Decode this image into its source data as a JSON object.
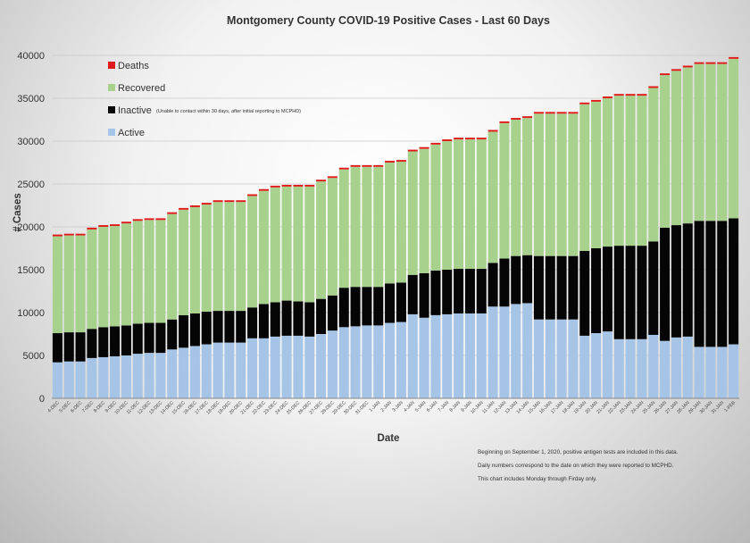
{
  "chart_data": {
    "type": "bar",
    "stacked": true,
    "title": "Montgomery County COVID-19 Positive Cases  - Last 60 Days",
    "xlabel": "Date",
    "ylabel": "# Cases",
    "ylim": [
      0,
      40000
    ],
    "yticks": [
      0,
      5000,
      10000,
      15000,
      20000,
      25000,
      30000,
      35000,
      40000
    ],
    "legend_position": "top-left",
    "legend_note": "(Unable to contact within 30 days, after initial reporting to MCPHD)",
    "categories": [
      "4-DEC",
      "5-DEC",
      "6-DEC",
      "7-DEC",
      "8-DEC",
      "9-DEC",
      "10-DEC",
      "11-DEC",
      "12-DEC",
      "13-DEC",
      "14-DEC",
      "15-DEC",
      "16-DEC",
      "17-DEC",
      "18-DEC",
      "19-DEC",
      "20-DEC",
      "21-DEC",
      "22-DEC",
      "23-DEC",
      "24-DEC",
      "25-DEC",
      "26-DEC",
      "27-DEC",
      "28-DEC",
      "29-DEC",
      "30-DEC",
      "31-DEC",
      "1-JAN",
      "2-JAN",
      "3-JAN",
      "4-JAN",
      "5-JAN",
      "6-JAN",
      "7-JAN",
      "8-JAN",
      "9-JAN",
      "10-JAN",
      "11-JAN",
      "12-JAN",
      "13-JAN",
      "14-JAN",
      "15-JAN",
      "16-JAN",
      "17-JAN",
      "18-JAN",
      "19-JAN",
      "20-JAN",
      "21-JAN",
      "22-JAN",
      "23-JAN",
      "24-JAN",
      "25-JAN",
      "26-JAN",
      "27-JAN",
      "28-JAN",
      "29-JAN",
      "30-JAN",
      "31-JAN",
      "1-FEB"
    ],
    "series": [
      {
        "name": "Active",
        "color": "#a6c4e6",
        "values": [
          4200,
          4300,
          4300,
          4700,
          4800,
          4900,
          5000,
          5200,
          5300,
          5300,
          5700,
          5900,
          6100,
          6300,
          6500,
          6500,
          6500,
          7000,
          7000,
          7200,
          7300,
          7300,
          7200,
          7500,
          7900,
          8300,
          8400,
          8500,
          8500,
          8800,
          8900,
          9800,
          9400,
          9700,
          9800,
          9900,
          9900,
          9900,
          10700,
          10700,
          11000,
          11100,
          9200,
          9200,
          9200,
          9200,
          7300,
          7600,
          7800,
          6900,
          6900,
          6900,
          7400,
          6700,
          7100,
          7200,
          6000,
          6000,
          6000,
          6300
        ]
      },
      {
        "name": "Inactive",
        "color": "#050505",
        "values": [
          3400,
          3400,
          3400,
          3400,
          3500,
          3500,
          3500,
          3500,
          3500,
          3500,
          3500,
          3800,
          3800,
          3800,
          3700,
          3700,
          3700,
          3600,
          4000,
          4000,
          4100,
          4000,
          4000,
          4100,
          4100,
          4600,
          4600,
          4500,
          4500,
          4600,
          4600,
          4600,
          5200,
          5200,
          5200,
          5200,
          5200,
          5200,
          5100,
          5600,
          5600,
          5600,
          7400,
          7400,
          7400,
          7400,
          9900,
          9900,
          9900,
          10900,
          10900,
          10900,
          10900,
          13200,
          13100,
          13200,
          14700,
          14700,
          14700,
          14700
        ]
      },
      {
        "name": "Recovered",
        "color": "#a8d18d",
        "values": [
          11300,
          11300,
          11300,
          11600,
          11700,
          11700,
          11900,
          12000,
          12000,
          12000,
          12300,
          12300,
          12400,
          12500,
          12700,
          12700,
          12700,
          13000,
          13200,
          13400,
          13300,
          13400,
          13500,
          13700,
          13700,
          13800,
          14000,
          14000,
          14000,
          14100,
          14100,
          14400,
          14500,
          14700,
          15000,
          15100,
          15100,
          15100,
          15300,
          15800,
          15900,
          16000,
          16600,
          16600,
          16600,
          16600,
          17100,
          17100,
          17300,
          17500,
          17500,
          17500,
          17900,
          17800,
          18000,
          18200,
          18300,
          18300,
          18300,
          18600
        ]
      },
      {
        "name": "Deaths",
        "color": "#e01a1a",
        "values": [
          200,
          200,
          200,
          200,
          200,
          200,
          200,
          200,
          200,
          200,
          200,
          200,
          200,
          200,
          200,
          200,
          200,
          200,
          200,
          200,
          200,
          200,
          200,
          200,
          200,
          200,
          200,
          200,
          200,
          200,
          200,
          200,
          200,
          200,
          200,
          200,
          200,
          200,
          200,
          200,
          200,
          200,
          200,
          200,
          200,
          200,
          200,
          200,
          200,
          200,
          200,
          200,
          200,
          200,
          200,
          200,
          200,
          200,
          200,
          200
        ]
      }
    ]
  },
  "legend_order": [
    "Deaths",
    "Recovered",
    "Inactive",
    "Active"
  ],
  "notes": [
    "Beginning on September 1, 2020, positive antigen tests are included in this data.",
    "Daily numbers correspond to the date on which they were reported to MCPHD.",
    "This chart includes Monday through Firday only."
  ]
}
